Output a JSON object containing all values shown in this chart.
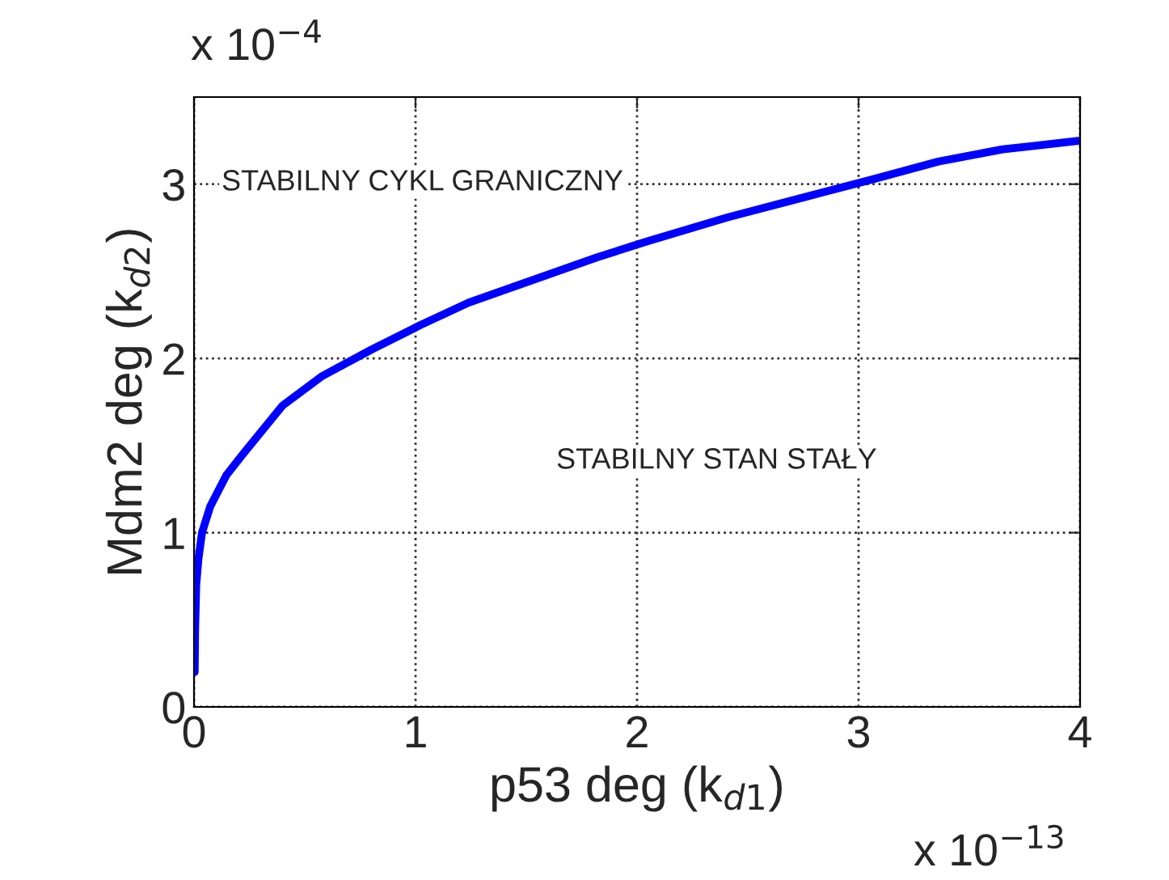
{
  "chart_data": {
    "type": "line",
    "xlabel": "p53 deg (k$_{d1}$)",
    "ylabel": "Mdm2 deg (k$_{d2}$)",
    "series": [
      {
        "color": "#0000ff",
        "x": [
          0.003,
          0.005,
          0.01,
          0.02,
          0.036,
          0.073,
          0.146,
          0.22,
          0.4,
          0.58,
          0.8,
          1.02,
          1.24,
          1.53,
          1.82,
          2.04,
          2.41,
          2.77,
          3.07,
          3.36,
          3.65,
          4.0
        ],
        "values": [
          0.2,
          0.45,
          0.7,
          0.85,
          1.0,
          1.15,
          1.33,
          1.45,
          1.73,
          1.9,
          2.05,
          2.19,
          2.32,
          2.45,
          2.58,
          2.67,
          2.81,
          2.93,
          3.03,
          3.13,
          3.2,
          3.25
        ]
      }
    ],
    "xlim": [
      0,
      4
    ],
    "ylim": [
      0,
      3.5
    ],
    "xticks": [
      0,
      1,
      2,
      3,
      4
    ],
    "yticks": [
      0,
      1,
      2,
      3
    ],
    "grid": true,
    "line_style": "solid",
    "marker": "none",
    "annotations": [
      "STABILNY CYKL GRANICZNY",
      "STABILNY STAN STAŁY",
      "x 10$^{−4}$",
      "x 10$^{−13}$"
    ]
  }
}
